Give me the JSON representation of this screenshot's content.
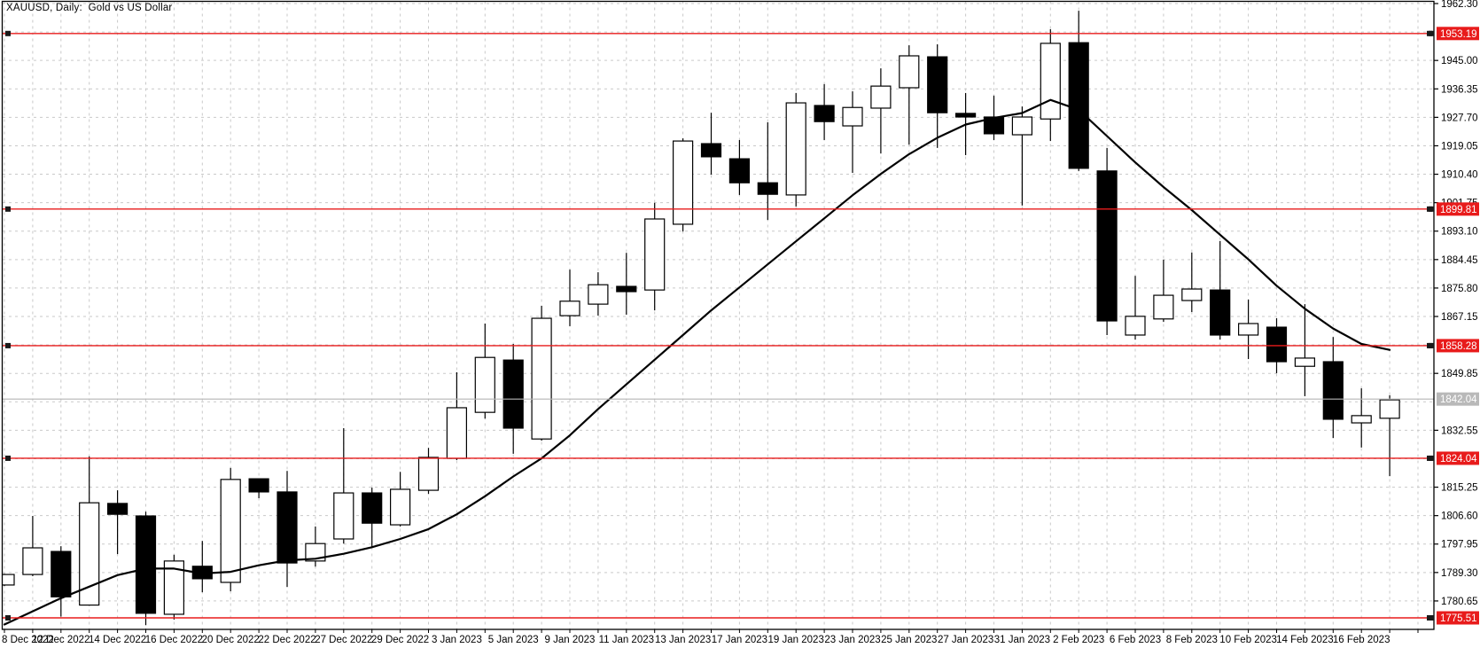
{
  "window": {
    "title": "XAUUSD, Daily:  Gold vs US Dollar"
  },
  "chart_data": {
    "type": "candlestick",
    "symbol": "XAUUSD",
    "timeframe": "Daily",
    "description": "Gold vs US Dollar",
    "y_axis": {
      "side": "right",
      "tick_step": 8.65,
      "visible_ticks": [
        1962.3,
        1945.0,
        1936.35,
        1927.7,
        1919.05,
        1910.4,
        1901.75,
        1893.1,
        1884.45,
        1875.8,
        1867.15,
        1849.85,
        1832.55,
        1815.25,
        1806.6,
        1797.95,
        1789.3,
        1780.65
      ],
      "grid_prices": [
        1962.3,
        1953.65,
        1945.0,
        1936.35,
        1927.7,
        1919.05,
        1910.4,
        1901.75,
        1893.1,
        1884.45,
        1875.8,
        1867.15,
        1858.5,
        1849.85,
        1841.2,
        1832.55,
        1823.9,
        1815.25,
        1806.6,
        1797.95,
        1789.3,
        1780.65
      ],
      "price_min_anchor": 1775.51,
      "price_max_anchor": 1962.3
    },
    "x_axis": {
      "labels": [
        {
          "index": 0,
          "label": "8 Dec 2022"
        },
        {
          "index": 2,
          "label": "12 Dec 2022"
        },
        {
          "index": 4,
          "label": "14 Dec 2022"
        },
        {
          "index": 6,
          "label": "16 Dec 2022"
        },
        {
          "index": 8,
          "label": "20 Dec 2022"
        },
        {
          "index": 10,
          "label": "22 Dec 2022"
        },
        {
          "index": 12,
          "label": "27 Dec 2022"
        },
        {
          "index": 14,
          "label": "29 Dec 2022"
        },
        {
          "index": 16,
          "label": "3 Jan 2023"
        },
        {
          "index": 18,
          "label": "5 Jan 2023"
        },
        {
          "index": 20,
          "label": "9 Jan 2023"
        },
        {
          "index": 22,
          "label": "11 Jan 2023"
        },
        {
          "index": 24,
          "label": "13 Jan 2023"
        },
        {
          "index": 26,
          "label": "17 Jan 2023"
        },
        {
          "index": 28,
          "label": "19 Jan 2023"
        },
        {
          "index": 30,
          "label": "23 Jan 2023"
        },
        {
          "index": 32,
          "label": "25 Jan 2023"
        },
        {
          "index": 34,
          "label": "27 Jan 2023"
        },
        {
          "index": 36,
          "label": "31 Jan 2023"
        },
        {
          "index": 38,
          "label": "2 Feb 2023"
        },
        {
          "index": 40,
          "label": "6 Feb 2023"
        },
        {
          "index": 42,
          "label": "8 Feb 2023"
        },
        {
          "index": 44,
          "label": "10 Feb 2023"
        },
        {
          "index": 46,
          "label": "14 Feb 2023"
        },
        {
          "index": 48,
          "label": "16 Feb 2023"
        }
      ]
    },
    "candles_ohlc": [
      [
        1785.5,
        1788.9,
        1785.2,
        1788.7
      ],
      [
        1788.7,
        1806.5,
        1788.2,
        1796.8
      ],
      [
        1795.7,
        1797.3,
        1775.9,
        1781.9
      ],
      [
        1779.4,
        1824.6,
        1779.2,
        1810.5
      ],
      [
        1810.3,
        1814.3,
        1794.9,
        1807.0
      ],
      [
        1806.5,
        1807.8,
        1773.3,
        1776.9
      ],
      [
        1776.6,
        1794.7,
        1775.0,
        1792.8
      ],
      [
        1791.2,
        1798.9,
        1783.3,
        1787.4
      ],
      [
        1786.3,
        1821.1,
        1783.6,
        1817.6
      ],
      [
        1817.8,
        1817.8,
        1811.9,
        1813.8
      ],
      [
        1813.8,
        1820.2,
        1784.9,
        1792.2
      ],
      [
        1792.8,
        1803.3,
        1791.1,
        1798.1
      ],
      [
        1799.5,
        1833.2,
        1798.1,
        1813.5
      ],
      [
        1813.5,
        1815.1,
        1796.9,
        1804.3
      ],
      [
        1803.8,
        1819.9,
        1803.3,
        1814.6
      ],
      [
        1814.3,
        1827.2,
        1813.2,
        1824.3
      ],
      [
        1824.0,
        1850.2,
        1823.5,
        1839.4
      ],
      [
        1838.0,
        1865.0,
        1836.1,
        1854.7
      ],
      [
        1853.9,
        1858.8,
        1825.4,
        1833.2
      ],
      [
        1829.9,
        1870.4,
        1829.4,
        1866.6
      ],
      [
        1867.4,
        1881.4,
        1864.2,
        1871.8
      ],
      [
        1870.9,
        1880.6,
        1867.4,
        1876.8
      ],
      [
        1876.3,
        1886.5,
        1867.7,
        1874.7
      ],
      [
        1875.2,
        1901.7,
        1869.0,
        1896.8
      ],
      [
        1895.2,
        1921.3,
        1893.0,
        1920.5
      ],
      [
        1919.7,
        1929.1,
        1910.3,
        1915.7
      ],
      [
        1915.1,
        1920.8,
        1904.1,
        1907.8
      ],
      [
        1907.8,
        1926.2,
        1896.5,
        1904.3
      ],
      [
        1904.1,
        1935.1,
        1900.6,
        1932.1
      ],
      [
        1931.3,
        1937.8,
        1920.8,
        1926.4
      ],
      [
        1925.1,
        1935.6,
        1910.8,
        1930.7
      ],
      [
        1930.5,
        1942.6,
        1916.7,
        1937.2
      ],
      [
        1936.7,
        1949.6,
        1919.4,
        1946.4
      ],
      [
        1946.1,
        1949.9,
        1918.4,
        1929.1
      ],
      [
        1928.9,
        1935.1,
        1916.2,
        1927.8
      ],
      [
        1927.8,
        1934.3,
        1920.8,
        1922.7
      ],
      [
        1922.4,
        1931.0,
        1900.9,
        1927.8
      ],
      [
        1927.2,
        1954.5,
        1920.5,
        1950.2
      ],
      [
        1950.4,
        1960.1,
        1911.4,
        1912.2
      ],
      [
        1911.4,
        1918.4,
        1861.5,
        1865.8
      ],
      [
        1861.5,
        1879.5,
        1860.1,
        1867.2
      ],
      [
        1866.4,
        1884.4,
        1865.5,
        1873.6
      ],
      [
        1872.0,
        1886.6,
        1868.5,
        1875.5
      ],
      [
        1875.2,
        1890.1,
        1860.1,
        1861.5
      ],
      [
        1861.5,
        1872.3,
        1854.2,
        1865.0
      ],
      [
        1863.9,
        1866.6,
        1849.9,
        1853.4
      ],
      [
        1852.0,
        1870.9,
        1842.9,
        1854.5
      ],
      [
        1853.4,
        1860.9,
        1830.2,
        1835.9
      ],
      [
        1834.8,
        1845.3,
        1827.3,
        1837.0
      ],
      [
        1836.2,
        1843.2,
        1818.6,
        1841.8
      ]
    ],
    "moving_average": {
      "name": "moving-average",
      "values": [
        1773.5,
        1777.5,
        1781.5,
        1785.0,
        1788.5,
        1790.5,
        1790.5,
        1789.0,
        1789.5,
        1791.5,
        1793.0,
        1793.5,
        1795.0,
        1797.0,
        1799.5,
        1802.5,
        1807.0,
        1812.5,
        1818.5,
        1824.0,
        1831.0,
        1839.0,
        1846.5,
        1854.0,
        1861.5,
        1869.0,
        1876.0,
        1883.0,
        1890.0,
        1897.0,
        1904.0,
        1910.5,
        1916.5,
        1921.5,
        1925.5,
        1927.5,
        1929.0,
        1933.0,
        1930.0,
        1922.0,
        1914.0,
        1906.5,
        1899.5,
        1892.0,
        1884.5,
        1876.5,
        1869.5,
        1863.5,
        1858.8,
        1857.0
      ]
    },
    "horizontal_lines": [
      {
        "price": 1953.19,
        "label": "1953.19"
      },
      {
        "price": 1899.81,
        "label": "1899.81"
      },
      {
        "price": 1858.28,
        "label": "1858.28"
      },
      {
        "price": 1824.04,
        "label": "1824.04"
      },
      {
        "price": 1775.51,
        "label": "1775.51"
      }
    ],
    "current_price": {
      "value": 1842.04,
      "label": "1842.04"
    },
    "legend_position": "none",
    "grid": true
  },
  "colors": {
    "background": "#ffffff",
    "border": "#000000",
    "grid": "#c9c9c9",
    "bull_body": "#ffffff",
    "bear_body": "#000000",
    "candle_outline": "#000000",
    "ma_line": "#000000",
    "hline_red": "#e81b1b",
    "hline_label_bg": "#e81b1b",
    "hline_label_text": "#ffffff",
    "current_line": "#b5b5b5",
    "current_label_bg": "#b9b9b9",
    "current_label_text": "#ffffff",
    "axis_text": "#000000"
  }
}
